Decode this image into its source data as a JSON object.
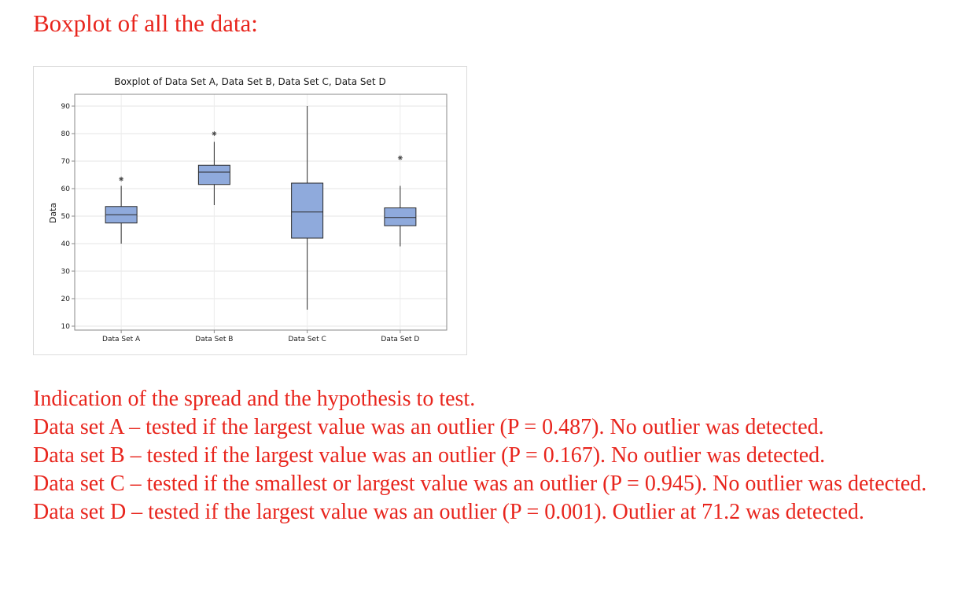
{
  "page": {
    "heading": "Boxplot of all the data:",
    "notes": [
      "Indication of the spread and the hypothesis to test.",
      "Data set A – tested if the largest value was an outlier (P = 0.487). No outlier was detected.",
      "Data set B – tested if the largest value was an outlier (P = 0.167). No outlier was detected.",
      "Data set C – tested if the smallest or largest value was an outlier (P = 0.945). No outlier was detected.",
      "Data set D – tested if the largest value was an outlier (P = 0.001). Outlier at 71.2 was detected."
    ],
    "text_color": "#e8251d"
  },
  "chart_data": {
    "type": "boxplot",
    "title": "Boxplot of Data Set A, Data Set B, Data Set C, Data Set D",
    "ylabel": "Data",
    "xlabel": "",
    "ylim": [
      10,
      90
    ],
    "yticks": [
      10,
      20,
      30,
      40,
      50,
      60,
      70,
      80,
      90
    ],
    "grid": true,
    "box_color": "#8faadc",
    "categories": [
      "Data Set A",
      "Data Set B",
      "Data Set C",
      "Data Set D"
    ],
    "boxes": [
      {
        "name": "Data Set A",
        "whisker_low": 40,
        "q1": 47.5,
        "median": 50.5,
        "q3": 53.5,
        "whisker_high": 61,
        "outliers": [
          63.5
        ]
      },
      {
        "name": "Data Set B",
        "whisker_low": 54,
        "q1": 61.5,
        "median": 66,
        "q3": 68.5,
        "whisker_high": 77,
        "outliers": [
          80
        ]
      },
      {
        "name": "Data Set C",
        "whisker_low": 16,
        "q1": 42,
        "median": 51.5,
        "q3": 62,
        "whisker_high": 90,
        "outliers": []
      },
      {
        "name": "Data Set D",
        "whisker_low": 39,
        "q1": 46.5,
        "median": 49.5,
        "q3": 53,
        "whisker_high": 61,
        "outliers": [
          71.2
        ]
      }
    ]
  }
}
